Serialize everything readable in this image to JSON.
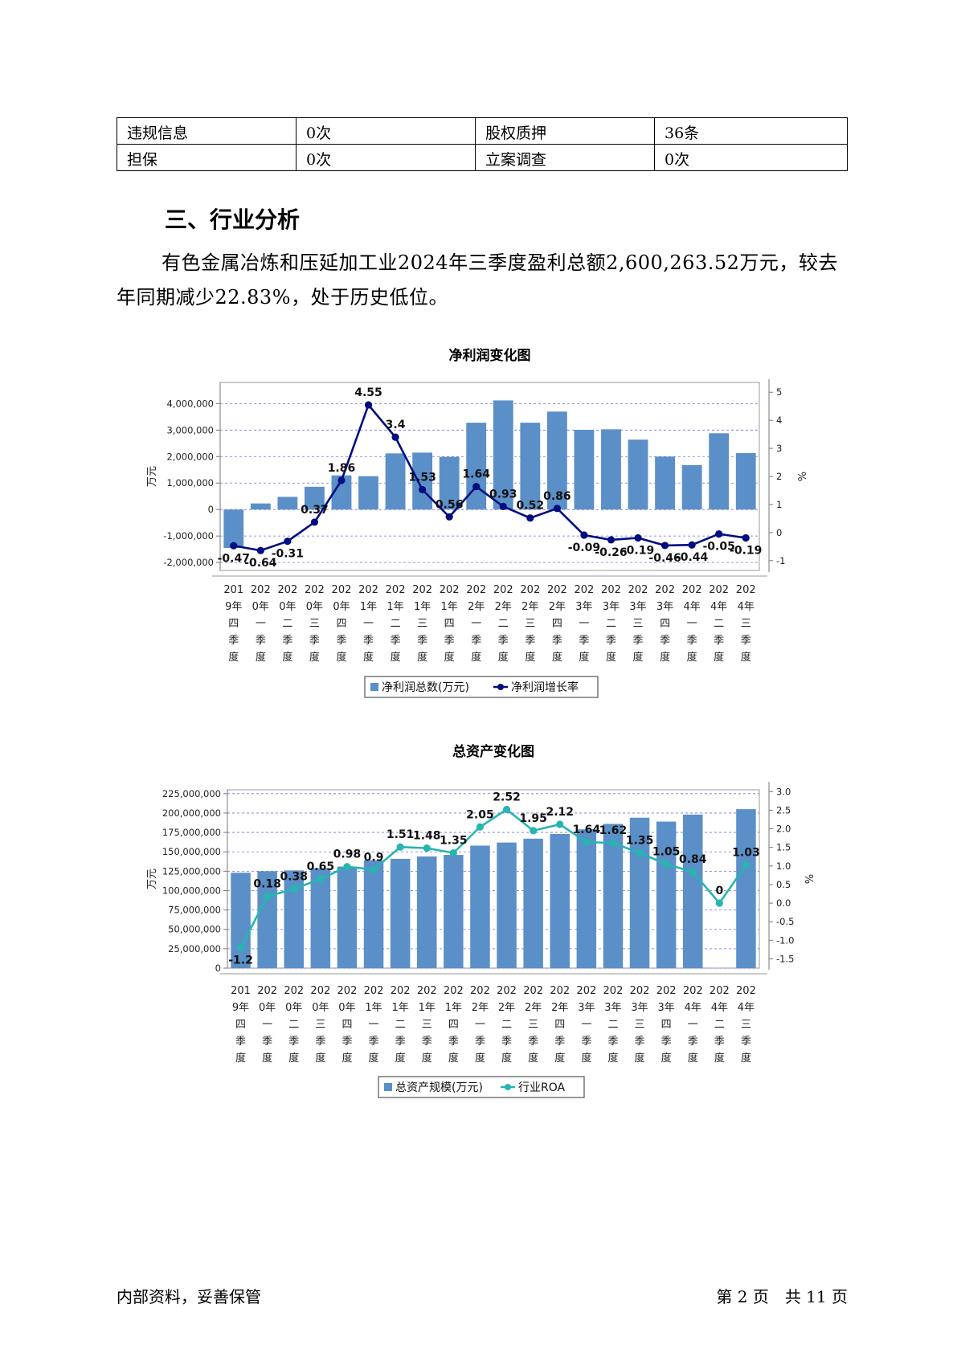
{
  "table": {
    "rows": [
      [
        "违规信息",
        "0次",
        "股权质押",
        "36条"
      ],
      [
        "担保",
        "0次",
        "立案调查",
        "0次"
      ]
    ]
  },
  "section_title": "三、行业分析",
  "paragraph": "有色金属冶炼和压延加工业2024年三季度盈利总额2,600,263.52万元，较去年同期减少22.83%，处于历史低位。",
  "categories": [
    [
      "201",
      "9年",
      "四",
      "季",
      "度"
    ],
    [
      "202",
      "0年",
      "一",
      "季",
      "度"
    ],
    [
      "202",
      "0年",
      "二",
      "季",
      "度"
    ],
    [
      "202",
      "0年",
      "三",
      "季",
      "度"
    ],
    [
      "202",
      "0年",
      "四",
      "季",
      "度"
    ],
    [
      "202",
      "1年",
      "一",
      "季",
      "度"
    ],
    [
      "202",
      "1年",
      "二",
      "季",
      "度"
    ],
    [
      "202",
      "1年",
      "三",
      "季",
      "度"
    ],
    [
      "202",
      "1年",
      "四",
      "季",
      "度"
    ],
    [
      "202",
      "2年",
      "一",
      "季",
      "度"
    ],
    [
      "202",
      "2年",
      "二",
      "季",
      "度"
    ],
    [
      "202",
      "2年",
      "三",
      "季",
      "度"
    ],
    [
      "202",
      "2年",
      "四",
      "季",
      "度"
    ],
    [
      "202",
      "3年",
      "一",
      "季",
      "度"
    ],
    [
      "202",
      "3年",
      "二",
      "季",
      "度"
    ],
    [
      "202",
      "3年",
      "三",
      "季",
      "度"
    ],
    [
      "202",
      "3年",
      "四",
      "季",
      "度"
    ],
    [
      "202",
      "4年",
      "一",
      "季",
      "度"
    ],
    [
      "202",
      "4年",
      "二",
      "季",
      "度"
    ],
    [
      "202",
      "4年",
      "三",
      "季",
      "度"
    ]
  ],
  "chart_data": [
    {
      "type": "bar+line",
      "title": "净利润变化图",
      "ylabel": "万元",
      "y2label": "%",
      "ylim": [
        -2300000,
        4800000
      ],
      "y2lim": [
        -1.35,
        5.35
      ],
      "yticks": [
        "4,000,000",
        "3,000,000",
        "2,000,000",
        "1,000,000",
        "0",
        "-1,000,000",
        "-2,000,000"
      ],
      "ytick_values": [
        4000000,
        3000000,
        2000000,
        1000000,
        0,
        -1000000,
        -2000000
      ],
      "y2ticks": [
        "5",
        "4",
        "3",
        "2",
        "1",
        "0",
        "-1"
      ],
      "y2tick_values": [
        5,
        4,
        3,
        2,
        1,
        0,
        -1
      ],
      "series": [
        {
          "name": "净利润总数(万元)",
          "kind": "bar",
          "color": "#5b8fc8",
          "values": [
            -1450000,
            230000,
            480000,
            860000,
            1290000,
            1260000,
            2120000,
            2150000,
            1990000,
            3280000,
            4120000,
            3280000,
            3700000,
            3010000,
            3030000,
            2640000,
            2000000,
            1680000,
            2880000,
            2130000
          ]
        },
        {
          "name": "净利润增长率",
          "kind": "line",
          "color": "#000d80",
          "values": [
            -0.47,
            -0.64,
            -0.31,
            0.37,
            1.86,
            4.55,
            3.4,
            1.53,
            0.56,
            1.64,
            0.93,
            0.52,
            0.86,
            -0.09,
            -0.26,
            -0.19,
            -0.46,
            -0.44,
            -0.05,
            -0.19
          ],
          "labels": [
            "-0.47",
            "-0.64",
            "-0.31",
            "0.37",
            "1.86",
            "4.55",
            "3.4",
            "1.53",
            "0.56",
            "1.64",
            "0.93",
            "0.52",
            "0.86",
            "-0.09",
            "-0.26",
            "-0.19",
            "-0.46",
            "-0.44",
            "-0.05",
            "-0.19"
          ]
        }
      ],
      "legend_position": "bottom",
      "grid": true
    },
    {
      "type": "bar+line",
      "title": "总资产变化图",
      "ylabel": "万元",
      "y2label": "%",
      "ylim": [
        0,
        230000000
      ],
      "y2lim": [
        -1.75,
        3.05
      ],
      "yticks": [
        "225,000,000",
        "200,000,000",
        "175,000,000",
        "150,000,000",
        "125,000,000",
        "100,000,000",
        "75,000,000",
        "50,000,000",
        "25,000,000",
        "0"
      ],
      "ytick_values": [
        225000000,
        200000000,
        175000000,
        150000000,
        125000000,
        100000000,
        75000000,
        50000000,
        25000000,
        0
      ],
      "y2ticks": [
        "3.0",
        "2.5",
        "2.0",
        "1.5",
        "1.0",
        "0.5",
        "0.0",
        "-0.5",
        "-1.0",
        "-1.5"
      ],
      "y2tick_values": [
        3.0,
        2.5,
        2.0,
        1.5,
        1.0,
        0.5,
        0.0,
        -0.5,
        -1.0,
        -1.5
      ],
      "series": [
        {
          "name": "总资产规模(万元)",
          "kind": "bar",
          "color": "#5b8fc8",
          "values": [
            123000000,
            125000000,
            126000000,
            129000000,
            131000000,
            139000000,
            141000000,
            144000000,
            146000000,
            158000000,
            162000000,
            167000000,
            173000000,
            179000000,
            186000000,
            194000000,
            189000000,
            198000000,
            null,
            205000000
          ]
        },
        {
          "name": "行业ROA",
          "kind": "line",
          "color": "#26b5b0",
          "values": [
            -1.2,
            0.18,
            0.38,
            0.65,
            0.98,
            0.9,
            1.51,
            1.48,
            1.35,
            2.05,
            2.52,
            1.95,
            2.12,
            1.64,
            1.62,
            1.35,
            1.05,
            0.84,
            0,
            1.03
          ],
          "labels": [
            "-1.2",
            "0.18",
            "0.38",
            "0.65",
            "0.98",
            "0.9",
            "1.51",
            "1.48",
            "1.35",
            "2.05",
            "2.52",
            "1.95",
            "2.12",
            "1.64",
            "1.62",
            "1.35",
            "1.05",
            "0.84",
            "0",
            "1.03"
          ]
        }
      ],
      "legend_position": "bottom",
      "grid": true
    }
  ],
  "footer": {
    "left": "内部资料，妥善保管",
    "right": "第 2 页　共 11 页"
  }
}
